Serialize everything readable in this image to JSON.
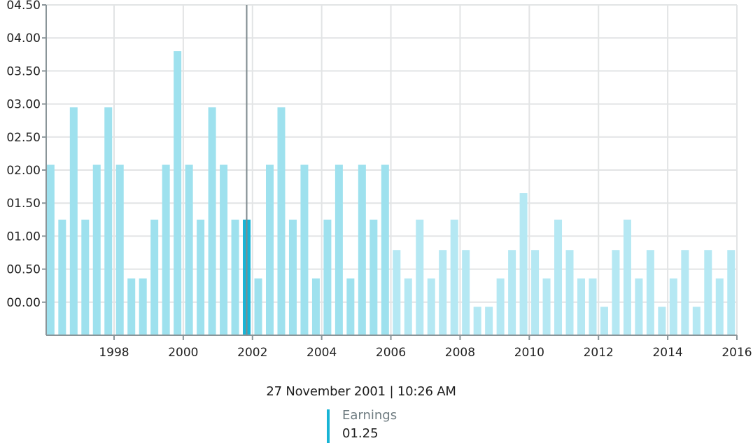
{
  "chart_data": {
    "type": "bar",
    "title": "",
    "xlabel": "",
    "ylabel": "",
    "x_axis": "date",
    "xlim": [
      "1996-01-15",
      "2016-01-01"
    ],
    "ylim": [
      -0.5,
      4.5
    ],
    "x_ticks": [
      "1998",
      "2000",
      "2002",
      "2004",
      "2006",
      "2008",
      "2010",
      "2012",
      "2014",
      "2016"
    ],
    "y_ticks": [
      "00.00",
      "00.50",
      "01.00",
      "01.50",
      "02.00",
      "02.50",
      "03.00",
      "03.50",
      "04.00",
      "04.50"
    ],
    "grid": true,
    "series": [
      {
        "name": "Earnings",
        "x": [
          "1996-03-01",
          "1996-07-01",
          "1996-11-01",
          "1997-03-01",
          "1997-07-01",
          "1997-11-01",
          "1998-03-01",
          "1998-07-01",
          "1998-11-01",
          "1999-03-01",
          "1999-07-01",
          "1999-11-01",
          "2000-03-01",
          "2000-07-01",
          "2000-11-01",
          "2001-03-01",
          "2001-07-01",
          "2001-11-01",
          "2002-03-01",
          "2002-07-01",
          "2002-11-01",
          "2003-03-01",
          "2003-07-01",
          "2003-11-01",
          "2004-03-01",
          "2004-07-01",
          "2004-11-01",
          "2005-03-01",
          "2005-07-01",
          "2005-11-01",
          "2006-03-01",
          "2006-07-01",
          "2006-11-01",
          "2007-03-01",
          "2007-07-01",
          "2007-11-01",
          "2008-03-01",
          "2008-07-01",
          "2008-11-01",
          "2009-03-01",
          "2009-07-01",
          "2009-11-01",
          "2010-03-01",
          "2010-07-01",
          "2010-11-01",
          "2011-03-01",
          "2011-07-01",
          "2011-11-01",
          "2012-03-01",
          "2012-07-01",
          "2012-11-01",
          "2013-03-01",
          "2013-07-01",
          "2013-11-01",
          "2014-03-01",
          "2014-07-01",
          "2014-11-01",
          "2015-03-01",
          "2015-07-01",
          "2015-11-01"
        ],
        "values": [
          2.08,
          1.25,
          2.95,
          1.25,
          2.08,
          2.95,
          2.08,
          0.36,
          0.36,
          1.25,
          2.08,
          3.8,
          2.08,
          1.25,
          2.95,
          2.08,
          1.25,
          1.25,
          0.36,
          2.08,
          2.95,
          1.25,
          2.08,
          0.36,
          1.25,
          2.08,
          0.36,
          2.08,
          1.25,
          2.08,
          0.79,
          0.36,
          1.25,
          0.36,
          0.79,
          1.25,
          0.79,
          -0.07,
          -0.07,
          0.36,
          0.79,
          1.65,
          0.79,
          0.36,
          1.25,
          0.79,
          0.36,
          0.36,
          -0.07,
          0.79,
          1.25,
          0.36,
          0.79,
          -0.07,
          0.36,
          0.79,
          -0.07,
          0.79,
          0.36,
          0.79
        ]
      }
    ],
    "highlighted_index": 17,
    "faded_from": "2006-01-01",
    "legend": "none",
    "colors": {
      "bar": "#9ee1ee",
      "bar_faded": "#b5e8f3",
      "highlight": "#17b4d5",
      "crosshair": "#7f8b8f",
      "grid": "#e2e4e5",
      "axis": "#8a9599"
    }
  },
  "tooltip": {
    "date": "27 November 2001 | 10:26 AM",
    "series_label": "Earnings",
    "value": "01.25",
    "marker_color": "#17b4d5"
  }
}
